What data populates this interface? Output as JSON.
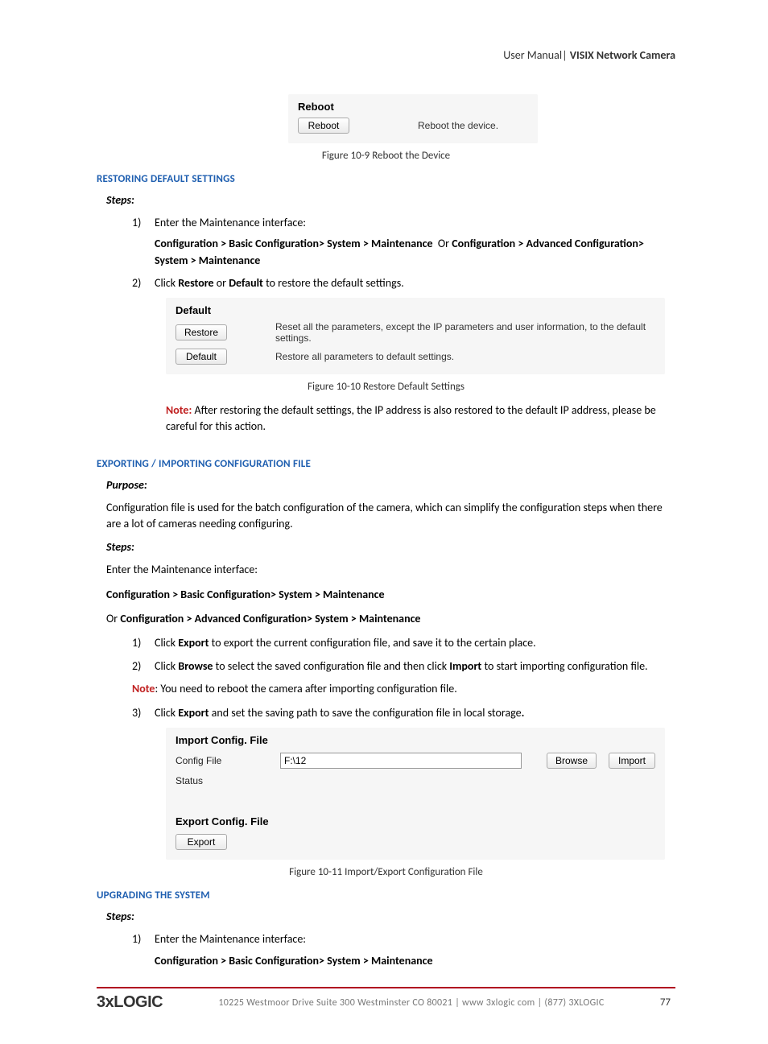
{
  "header": {
    "left": "User Manual",
    "separator": "|",
    "right": "VISIX Network Camera"
  },
  "reboot_panel": {
    "title": "Reboot",
    "button": "Reboot",
    "description": "Reboot the device."
  },
  "figure_10_9": "Figure 10-9 Reboot the Device",
  "section_restoring": "RESTORING DEFAULT SETTINGS",
  "steps_label": "Steps:",
  "restore_step1": "Enter the Maintenance interface:",
  "restore_step1_path_a": "Configuration > Basic Configuration> System > Maintenance",
  "restore_step1_or": "Or",
  "restore_step1_path_b": "Configuration > Advanced Configuration> System > Maintenance",
  "restore_step2_pre": "Click ",
  "restore_step2_b1": "Restore",
  "restore_step2_mid": " or ",
  "restore_step2_b2": "Default",
  "restore_step2_post": " to restore the default settings.",
  "default_panel": {
    "title": "Default",
    "restore_btn": "Restore",
    "restore_desc": "Reset all the parameters, except the IP parameters and user information, to the default settings.",
    "default_btn": "Default",
    "default_desc": "Restore all parameters to default settings."
  },
  "figure_10_10": "Figure 10-10 Restore Default Settings",
  "note1_label": "Note:",
  "note1_text": " After restoring the default settings, the IP address is also restored to the default IP address, please be careful for this action.",
  "section_export": "EXPORTING / IMPORTING CONFIGURATION FILE",
  "purpose_label": "Purpose:",
  "purpose_text": "Configuration file is used for the batch configuration of the camera, which can simplify the configuration steps when there are a lot of cameras needing configuring.",
  "enter_maintenance": "Enter the Maintenance interface:",
  "path1": "Configuration > Basic Configuration> System > Maintenance",
  "or_line_pre": "Or ",
  "path2": "Configuration > Advanced Configuration> System > Maintenance",
  "export_step1_a": "Click ",
  "export_step1_b": "Export",
  "export_step1_c": " to export the current configuration file, and save it to the certain place.",
  "export_step2_a": "Click ",
  "export_step2_b": "Browse",
  "export_step2_c": " to select the saved configuration file and then click ",
  "export_step2_d": "Import",
  "export_step2_e": " to start importing configuration file.",
  "note2_label": "Note",
  "note2_text": ": You need to reboot the camera after importing configuration file.",
  "export_step3_a": "Click ",
  "export_step3_b": "Export",
  "export_step3_c": " and set the saving path to save the configuration file in local storage",
  "export_step3_d": ".",
  "config_panel": {
    "import_title": "Import Config. File",
    "config_file_label": "Config File",
    "config_file_value": "F:\\12",
    "browse_btn": "Browse",
    "import_btn": "Import",
    "status_label": "Status",
    "export_title": "Export Config. File",
    "export_btn": "Export"
  },
  "figure_10_11": "Figure 10-11 Import/Export Configuration File",
  "section_upgrading": "UPGRADING THE SYSTEM",
  "upgrade_step1": "Enter the Maintenance interface:",
  "upgrade_path": "Configuration > Basic Configuration> System > Maintenance",
  "footer": {
    "logo": "3xLOGIC",
    "address": "10225 Westmoor Drive  Suite 300  Westminster  CO 80021 | www 3xlogic com | (877) 3XLOGIC",
    "page": "77"
  }
}
